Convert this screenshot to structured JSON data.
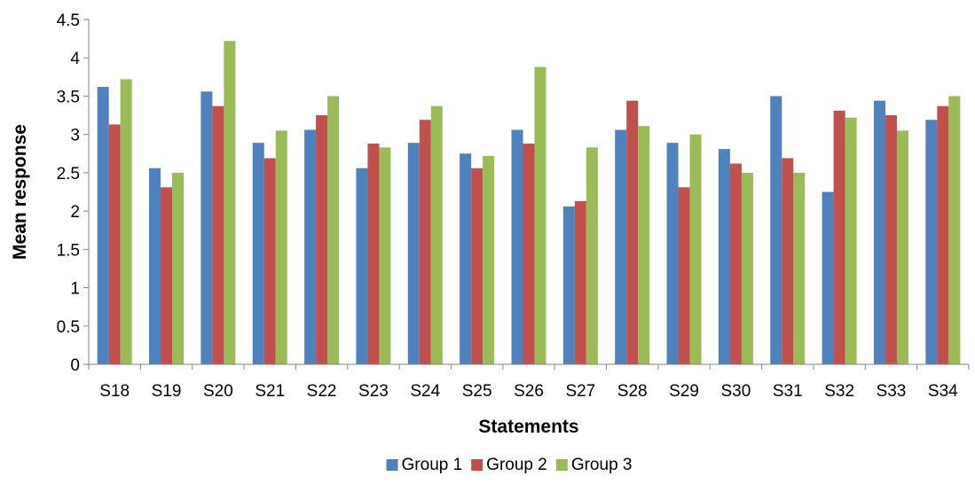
{
  "chart_data": {
    "type": "bar",
    "xlabel": "Statements",
    "ylabel": "Mean response",
    "ylim": [
      0,
      4.5
    ],
    "yticks": [
      0,
      0.5,
      1,
      1.5,
      2,
      2.5,
      3,
      3.5,
      4,
      4.5
    ],
    "grid": false,
    "legend_position": "bottom",
    "categories": [
      "S18",
      "S19",
      "S20",
      "S21",
      "S22",
      "S23",
      "S24",
      "S25",
      "S26",
      "S27",
      "S28",
      "S29",
      "S30",
      "S31",
      "S32",
      "S33",
      "S34"
    ],
    "series": [
      {
        "name": "Group 1",
        "color": "#4F81BD",
        "values": [
          3.62,
          2.56,
          3.56,
          2.89,
          3.06,
          2.56,
          2.89,
          2.75,
          3.06,
          2.06,
          3.06,
          2.89,
          2.81,
          3.5,
          2.25,
          3.44,
          3.19
        ]
      },
      {
        "name": "Group 2",
        "color": "#C0504D",
        "values": [
          3.13,
          2.31,
          3.37,
          2.69,
          3.25,
          2.88,
          3.19,
          2.56,
          2.88,
          2.13,
          3.44,
          2.31,
          2.62,
          2.69,
          3.31,
          3.25,
          3.37
        ]
      },
      {
        "name": "Group 3",
        "color": "#9BBB59",
        "values": [
          3.72,
          2.5,
          4.22,
          3.05,
          3.5,
          2.83,
          3.37,
          2.72,
          3.88,
          2.83,
          3.11,
          3.0,
          2.5,
          2.5,
          3.22,
          3.05,
          3.5
        ]
      }
    ]
  }
}
